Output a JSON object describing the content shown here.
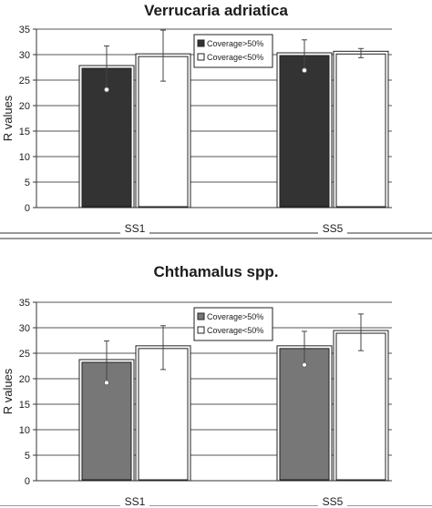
{
  "chart_data": [
    {
      "type": "bar",
      "title": "Verrucaria adriatica",
      "ylabel": "R values",
      "xlabel": "",
      "ylim": [
        0,
        35
      ],
      "yticks": [
        0,
        5,
        10,
        15,
        20,
        25,
        30,
        35
      ],
      "categories": [
        "SS1",
        "SS5"
      ],
      "series": [
        {
          "name": "Coverage>50%",
          "values": [
            27.5,
            30.0
          ],
          "errors": [
            4.2,
            2.9
          ],
          "color": "#333333"
        },
        {
          "name": "Coverage<50%",
          "values": [
            29.8,
            30.3
          ],
          "errors": [
            5.0,
            0.9
          ],
          "color": "#ffffff"
        }
      ],
      "grid": true,
      "legend": "top-center"
    },
    {
      "type": "bar",
      "title": "Chthamalus spp.",
      "ylabel": "R values",
      "xlabel": "",
      "ylim": [
        0,
        35
      ],
      "yticks": [
        0,
        5,
        10,
        15,
        20,
        25,
        30,
        35
      ],
      "categories": [
        "SS1",
        "SS5"
      ],
      "series": [
        {
          "name": "Coverage>50%",
          "values": [
            23.4,
            26.1
          ],
          "errors": [
            4.0,
            3.2
          ],
          "color": "#777777"
        },
        {
          "name": "Coverage<50%",
          "values": [
            26.1,
            29.1
          ],
          "errors": [
            4.3,
            3.6
          ],
          "color": "#ffffff"
        }
      ],
      "grid": true,
      "legend": "top-center"
    }
  ]
}
